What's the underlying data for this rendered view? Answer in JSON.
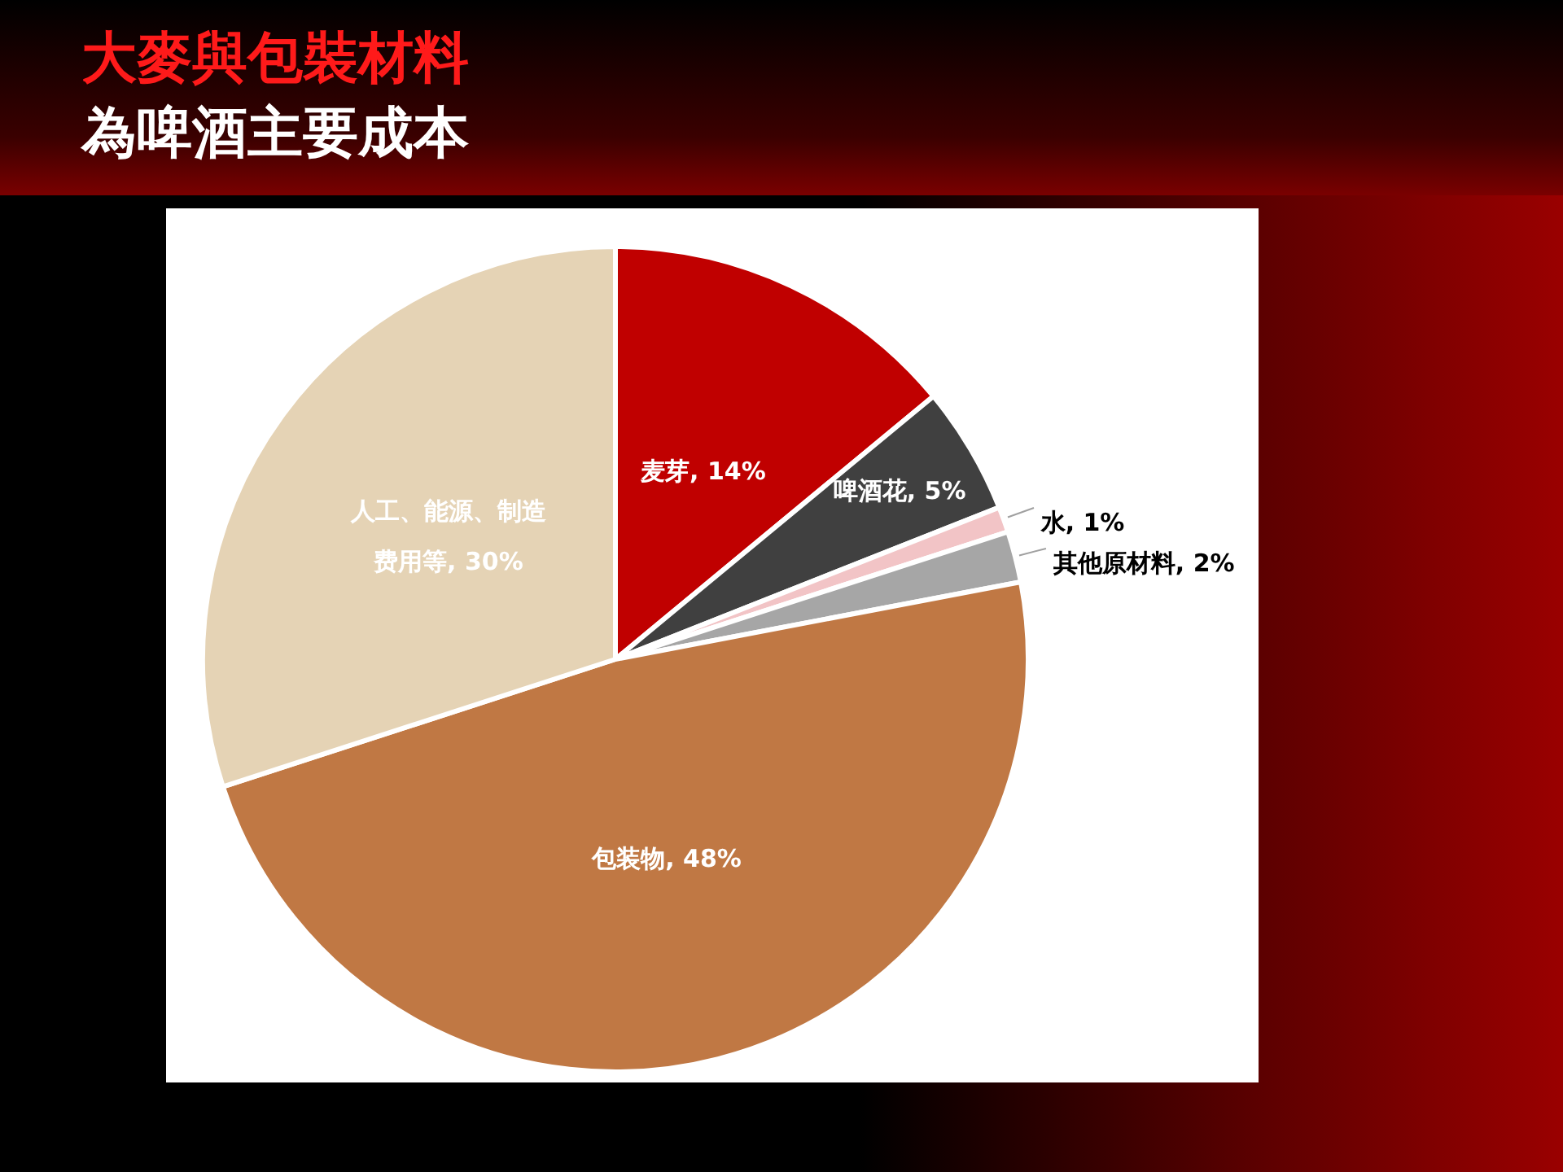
{
  "chart_data": {
    "type": "pie",
    "title": "大麥與包裝材料",
    "subtitle": "為啤酒主要成本",
    "categories": [
      "麦芽",
      "啤酒花",
      "水",
      "其他原材料",
      "包装物",
      "人工、能源、制造费用等"
    ],
    "values": [
      14,
      5,
      1,
      2,
      48,
      30
    ],
    "colors": [
      "#c00000",
      "#404040",
      "#f2c4c6",
      "#a6a6a6",
      "#c07844",
      "#e5d3b5"
    ],
    "value_labels": [
      "14%",
      "5%",
      "1%",
      "2%",
      "48%",
      "30%"
    ],
    "legend": false
  }
}
